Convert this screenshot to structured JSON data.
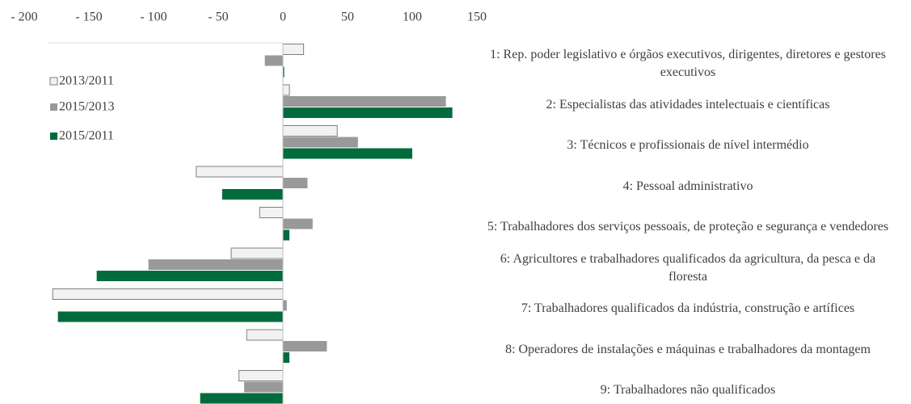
{
  "chart_data": {
    "type": "barh",
    "categories": [
      "1: Rep. poder legislativo e órgãos executivos, dirigentes, diretores e gestores executivos",
      "2: Especialistas das atividades intelectuais e científicas",
      "3: Técnicos e profissionais de nível intermédio",
      "4: Pessoal administrativo",
      "5: Trabalhadores dos serviços pessoais, de proteção e segurança e vendedores",
      "6: Agricultores e trabalhadores qualificados da agricultura, da pesca e da floresta",
      "7: Trabalhadores qualificados da indústria, construção e artífices",
      "8: Operadores de instalações e máquinas e trabalhadores da montagem",
      "9: Trabalhadores não qualificados"
    ],
    "series": [
      {
        "name": "2013/2011",
        "color": "#f2f2f2",
        "values": [
          16,
          5,
          42,
          -67,
          -18,
          -40,
          -178,
          -28,
          -34
        ]
      },
      {
        "name": "2015/2013",
        "color": "#999999",
        "values": [
          -14,
          126,
          58,
          19,
          23,
          -104,
          3,
          34,
          -30
        ]
      },
      {
        "name": "2015/2011",
        "color": "#006b3c",
        "values": [
          1,
          131,
          100,
          -47,
          5,
          -144,
          -174,
          5,
          -64
        ]
      }
    ],
    "xlim": [
      -200,
      150
    ],
    "xticks": [
      {
        "value": -200,
        "label": "- 200"
      },
      {
        "value": -150,
        "label": "- 150"
      },
      {
        "value": -100,
        "label": "- 100"
      },
      {
        "value": -50,
        "label": "- 50"
      },
      0,
      50,
      100,
      150
    ]
  }
}
